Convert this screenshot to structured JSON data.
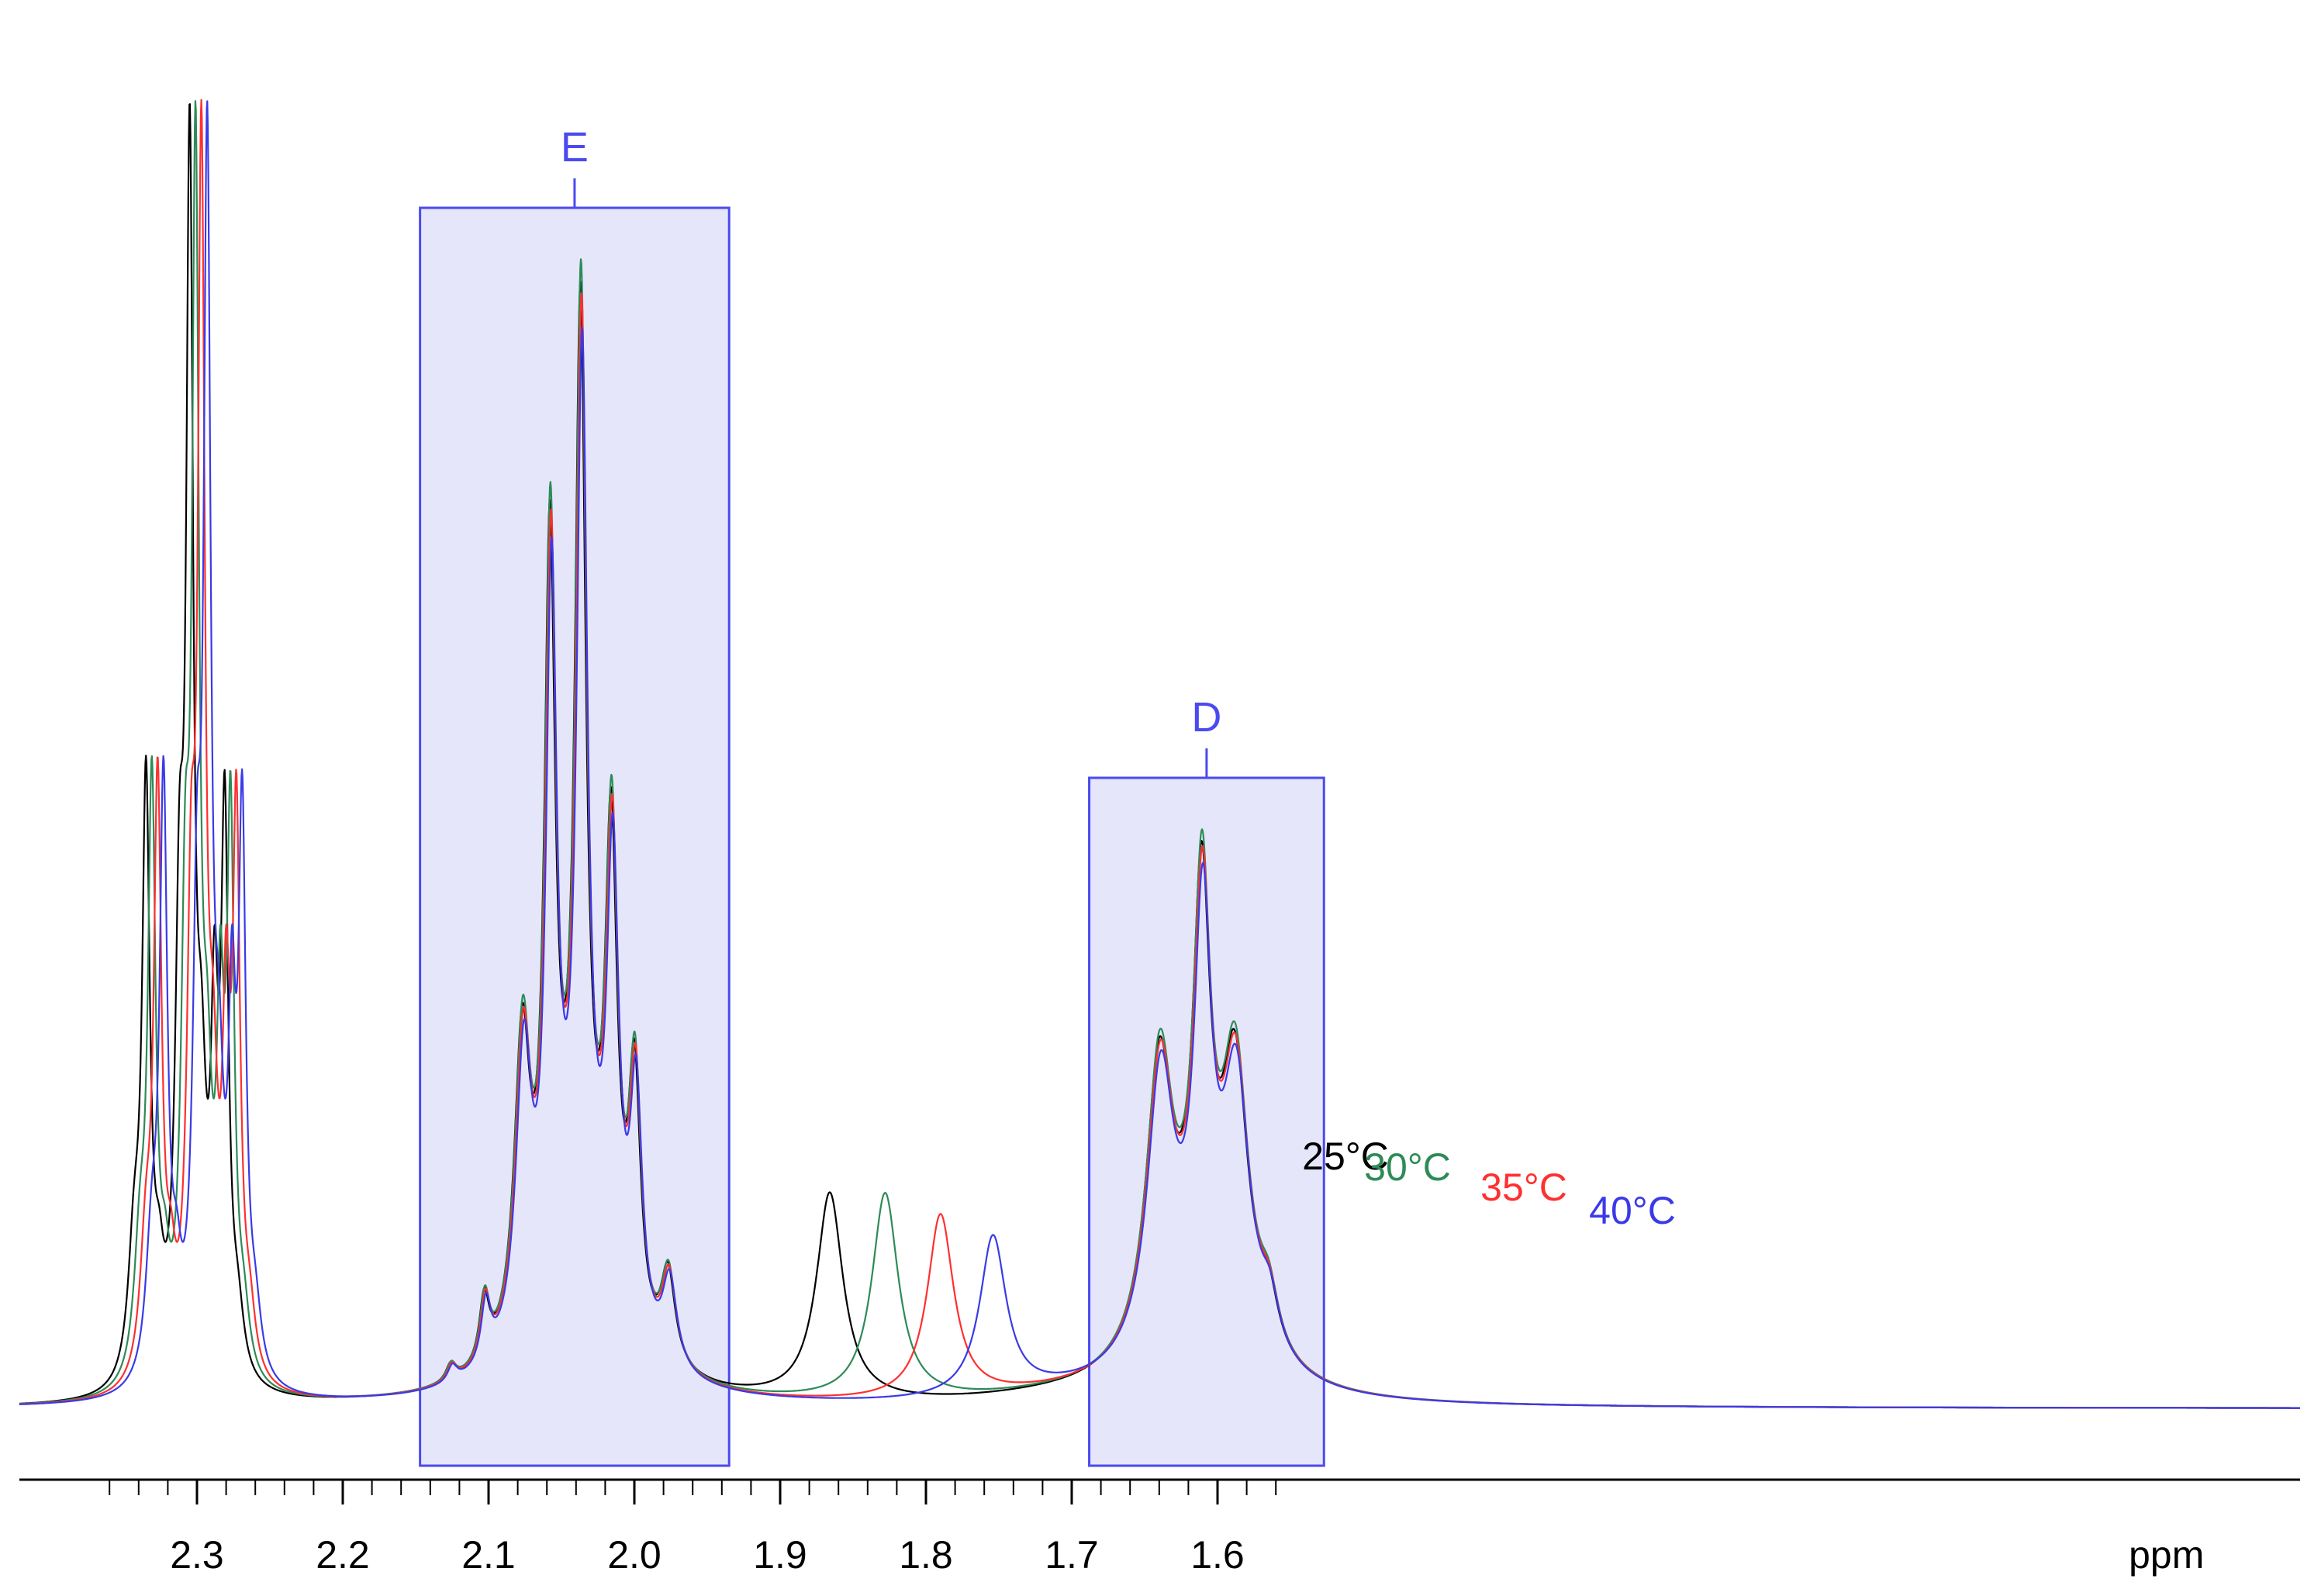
{
  "chart_data": {
    "type": "line",
    "xlabel": "ppm",
    "xlim": [
      2.37,
      1.53
    ],
    "x_reversed": true,
    "x_ticks": [
      2.3,
      2.2,
      2.1,
      2.0,
      1.9,
      1.8,
      1.7,
      1.6
    ],
    "x_tick_labels": [
      "2.3",
      "2.2",
      "2.1",
      "2.0",
      "1.9",
      "1.8",
      "1.7",
      "1.6"
    ],
    "regions": [
      {
        "label": "E",
        "x_start": 2.147,
        "x_end": 1.935,
        "color": "#4a4af0"
      },
      {
        "label": "D",
        "x_start": 1.688,
        "x_end": 1.527,
        "color": "#4a4af0"
      }
    ],
    "series": [
      {
        "name": "25°C",
        "color": "#000000",
        "shift": 0.0,
        "solvent_peak_ppm": 1.866,
        "solvent_peak_height": 0.147,
        "scale": 1.0
      },
      {
        "name": "30°C",
        "color": "#2e8b57",
        "shift": -0.002,
        "solvent_peak_ppm": 1.828,
        "solvent_peak_height": 0.147,
        "scale": 1.02
      },
      {
        "name": "35°C",
        "color": "#ff3030",
        "shift": -0.004,
        "solvent_peak_ppm": 1.79,
        "solvent_peak_height": 0.131,
        "scale": 0.99
      },
      {
        "name": "40°C",
        "color": "#3a3ae8",
        "shift": -0.006,
        "solvent_peak_ppm": 1.754,
        "solvent_peak_height": 0.113,
        "scale": 0.96
      }
    ],
    "grid": false,
    "legend": "inline labels above solvent peaks"
  }
}
